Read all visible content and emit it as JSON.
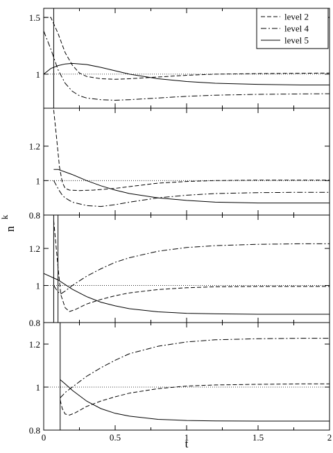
{
  "chart_data": {
    "type": "line",
    "xlabel": "t",
    "ylabel": "n",
    "ylabel_superscript": "k",
    "xlim": [
      0,
      2
    ],
    "x_ticks": [
      "0",
      "0.5",
      "1",
      "1.5",
      "2"
    ],
    "grid": false,
    "legend_position": "top-right",
    "legend": [
      "level 2",
      "level 4",
      "level 5"
    ],
    "panels": [
      {
        "name": "panel-1",
        "ylim": [
          0.7,
          1.58
        ],
        "y_ticks": [
          {
            "v": 1,
            "label": "1"
          },
          {
            "v": 1.5,
            "label": "1.5"
          }
        ],
        "vline_x": 0.07,
        "reference_line": 1,
        "series": [
          {
            "name": "level 2",
            "style": "dashed",
            "x": [
              0,
              0.05,
              0.1,
              0.15,
              0.2,
              0.25,
              0.3,
              0.4,
              0.5,
              0.6,
              0.8,
              1,
              1.2,
              1.5,
              1.8,
              2
            ],
            "y": [
              1.5,
              1.5,
              1.36,
              1.19,
              1.08,
              1.01,
              0.98,
              0.96,
              0.955,
              0.96,
              0.975,
              0.99,
              1.0,
              1.005,
              1.008,
              1.01
            ]
          },
          {
            "name": "level 4",
            "style": "dashdot",
            "x": [
              0,
              0.05,
              0.1,
              0.15,
              0.2,
              0.25,
              0.3,
              0.4,
              0.5,
              0.6,
              0.8,
              1,
              1.2,
              1.5,
              1.8,
              2
            ],
            "y": [
              1.38,
              1.22,
              1.04,
              0.92,
              0.85,
              0.81,
              0.79,
              0.775,
              0.77,
              0.775,
              0.79,
              0.805,
              0.815,
              0.822,
              0.826,
              0.828
            ]
          },
          {
            "name": "level 5",
            "style": "solid",
            "x": [
              0,
              0.05,
              0.1,
              0.15,
              0.2,
              0.3,
              0.4,
              0.5,
              0.6,
              0.8,
              1,
              1.2,
              1.5,
              1.8,
              2
            ],
            "y": [
              1.0,
              1.05,
              1.075,
              1.09,
              1.095,
              1.085,
              1.06,
              1.03,
              1.0,
              0.96,
              0.935,
              0.92,
              0.91,
              0.905,
              0.905
            ]
          }
        ]
      },
      {
        "name": "panel-2",
        "ylim": [
          0.8,
          1.42
        ],
        "y_ticks": [
          {
            "v": 0.8,
            "label": "0.8"
          },
          {
            "v": 1,
            "label": "1"
          },
          {
            "v": 1.2,
            "label": "1.2"
          }
        ],
        "vline_x": null,
        "reference_line": 1,
        "series": [
          {
            "name": "level 2",
            "style": "dashed",
            "x": [
              0.07,
              0.09,
              0.11,
              0.13,
              0.15,
              0.18,
              0.25,
              0.35,
              0.5,
              0.6,
              0.8,
              1,
              1.2,
              1.5,
              1.8,
              2
            ],
            "y": [
              1.41,
              1.25,
              1.08,
              0.99,
              0.955,
              0.945,
              0.942,
              0.945,
              0.955,
              0.965,
              0.985,
              0.995,
              1.0,
              1.003,
              1.003,
              1.003
            ]
          },
          {
            "name": "level 4",
            "style": "dashdot",
            "x": [
              0.07,
              0.09,
              0.11,
              0.13,
              0.15,
              0.2,
              0.3,
              0.4,
              0.5,
              0.6,
              0.8,
              1,
              1.2,
              1.5,
              1.8,
              2
            ],
            "y": [
              1.0,
              0.97,
              0.94,
              0.915,
              0.9,
              0.875,
              0.855,
              0.85,
              0.86,
              0.875,
              0.9,
              0.915,
              0.925,
              0.93,
              0.932,
              0.932
            ]
          },
          {
            "name": "level 5",
            "style": "solid",
            "x": [
              0.07,
              0.1,
              0.15,
              0.2,
              0.3,
              0.4,
              0.5,
              0.6,
              0.8,
              1,
              1.2,
              1.5,
              1.8,
              2
            ],
            "y": [
              1.065,
              1.065,
              1.05,
              1.035,
              1.0,
              0.97,
              0.945,
              0.925,
              0.9,
              0.885,
              0.875,
              0.87,
              0.87,
              0.87
            ]
          }
        ]
      },
      {
        "name": "panel-3",
        "ylim": [
          0.8,
          1.38
        ],
        "y_ticks": [
          {
            "v": 0.8,
            "label": "0.8"
          },
          {
            "v": 1,
            "label": "1"
          },
          {
            "v": 1.2,
            "label": "1.2"
          }
        ],
        "vline_x": 0.07,
        "vline2_x": 0.1,
        "reference_line": 1,
        "series": [
          {
            "name": "level 2",
            "style": "dashed",
            "x": [
              0.07,
              0.1,
              0.12,
              0.15,
              0.18,
              0.22,
              0.3,
              0.4,
              0.5,
              0.6,
              0.8,
              1,
              1.2,
              1.5,
              1.8,
              2
            ],
            "y": [
              1.35,
              1.1,
              0.95,
              0.88,
              0.86,
              0.87,
              0.9,
              0.925,
              0.945,
              0.96,
              0.978,
              0.988,
              0.993,
              0.995,
              0.995,
              0.995
            ]
          },
          {
            "name": "level 4",
            "style": "dashdot",
            "x": [
              0.07,
              0.1,
              0.12,
              0.15,
              0.2,
              0.3,
              0.4,
              0.5,
              0.6,
              0.8,
              1,
              1.2,
              1.5,
              1.8,
              2
            ],
            "y": [
              1.0,
              0.965,
              0.955,
              0.97,
              1.0,
              1.05,
              1.09,
              1.125,
              1.15,
              1.185,
              1.205,
              1.215,
              1.222,
              1.225,
              1.225
            ]
          },
          {
            "name": "level 5",
            "style": "solid",
            "x": [
              0.0,
              0.1,
              0.2,
              0.3,
              0.4,
              0.5,
              0.6,
              0.8,
              1,
              1.2,
              1.5,
              1.8,
              2
            ],
            "y": [
              1.065,
              1.03,
              0.98,
              0.94,
              0.91,
              0.89,
              0.875,
              0.858,
              0.85,
              0.847,
              0.845,
              0.845,
              0.845
            ]
          }
        ]
      },
      {
        "name": "panel-4",
        "ylim": [
          0.8,
          1.3
        ],
        "y_ticks": [
          {
            "v": 0.8,
            "label": "0.8"
          },
          {
            "v": 1,
            "label": "1"
          },
          {
            "v": 1.2,
            "label": "1.2"
          }
        ],
        "vline_x": 0.115,
        "reference_line": 1,
        "series": [
          {
            "name": "level 2",
            "style": "dashed",
            "x": [
              0.115,
              0.13,
              0.15,
              0.18,
              0.22,
              0.3,
              0.4,
              0.5,
              0.6,
              0.8,
              1,
              1.2,
              1.5,
              1.8,
              2
            ],
            "y": [
              0.94,
              0.9,
              0.875,
              0.87,
              0.88,
              0.91,
              0.935,
              0.955,
              0.972,
              0.993,
              1.005,
              1.01,
              1.013,
              1.015,
              1.015
            ]
          },
          {
            "name": "level 4",
            "style": "dashdot",
            "x": [
              0.115,
              0.13,
              0.15,
              0.2,
              0.3,
              0.4,
              0.5,
              0.6,
              0.8,
              1,
              1.2,
              1.5,
              1.8,
              2
            ],
            "y": [
              0.95,
              0.96,
              0.975,
              1.0,
              1.05,
              1.09,
              1.125,
              1.155,
              1.19,
              1.21,
              1.22,
              1.225,
              1.227,
              1.227
            ]
          },
          {
            "name": "level 5",
            "style": "solid",
            "x": [
              0.115,
              0.15,
              0.2,
              0.3,
              0.4,
              0.5,
              0.6,
              0.8,
              1,
              1.2,
              1.5,
              1.8,
              2
            ],
            "y": [
              1.035,
              1.015,
              0.985,
              0.935,
              0.9,
              0.878,
              0.865,
              0.85,
              0.845,
              0.843,
              0.842,
              0.842,
              0.842
            ]
          }
        ]
      }
    ]
  }
}
